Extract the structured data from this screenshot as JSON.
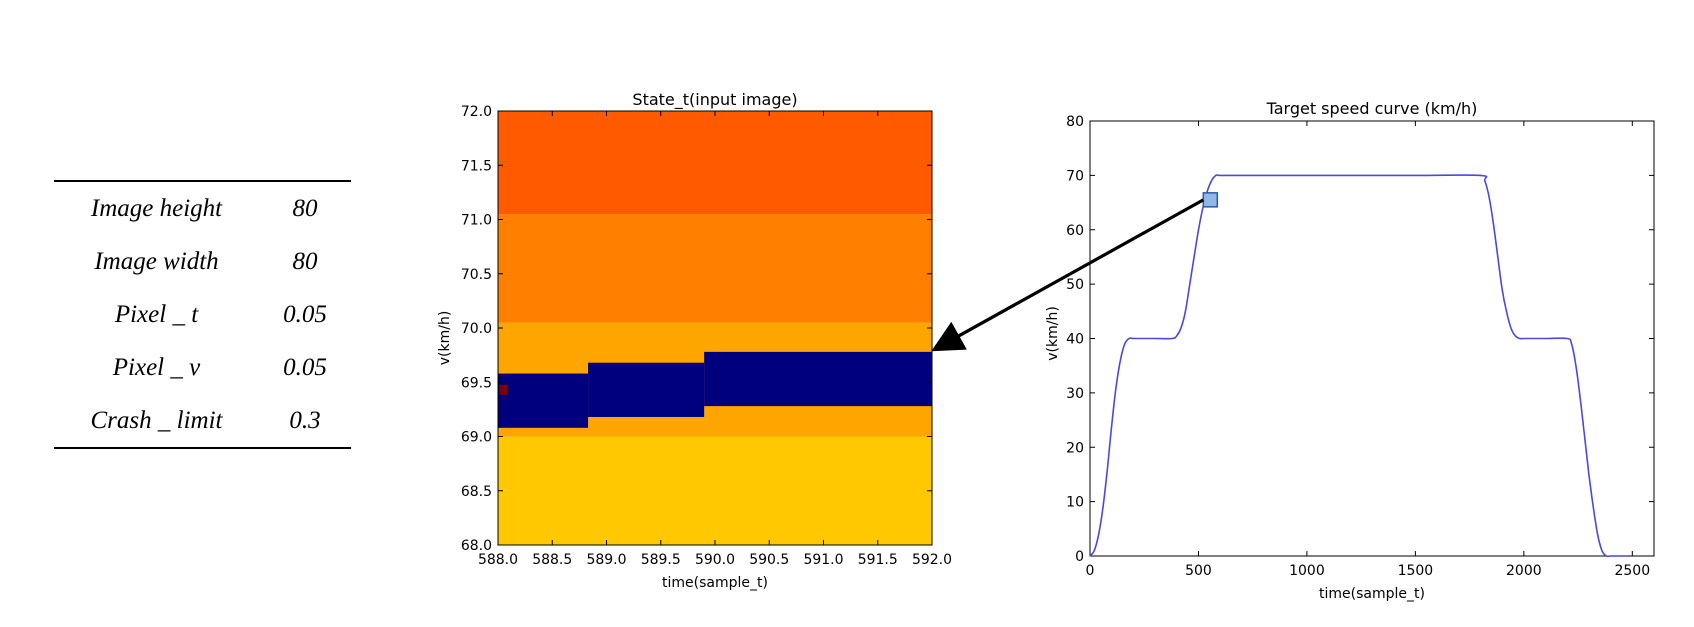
{
  "table": {
    "rows": [
      {
        "label": "Image height",
        "value": "80"
      },
      {
        "label": "Image width",
        "value": "80"
      },
      {
        "label": "Pixel _ t",
        "value": "0.05"
      },
      {
        "label": "Pixel _ v",
        "value": "0.05"
      },
      {
        "label": "Crash _ limit",
        "value": "0.3"
      }
    ]
  },
  "chart_data": [
    {
      "type": "heatmap",
      "title": "State_t(input image)",
      "xlabel": "time(sample_t)",
      "ylabel": "v(km/h)",
      "xlim": [
        588.0,
        592.0
      ],
      "ylim": [
        68.0,
        72.0
      ],
      "xticks": [
        "588.0",
        "588.5",
        "589.0",
        "589.5",
        "590.0",
        "590.5",
        "591.0",
        "591.5",
        "592.0"
      ],
      "yticks": [
        "68.0",
        "68.5",
        "69.0",
        "69.5",
        "70.0",
        "70.5",
        "71.0",
        "71.5",
        "72.0"
      ],
      "bands": [
        {
          "y0": 71.05,
          "y1": 72.0,
          "color": "#ff5a00"
        },
        {
          "y0": 70.05,
          "y1": 71.05,
          "color": "#ff7f00"
        },
        {
          "y0": 69.0,
          "y1": 70.05,
          "color": "#ffa500"
        },
        {
          "y0": 68.0,
          "y1": 69.0,
          "color": "#ffc800"
        }
      ],
      "speed_band": {
        "color": "#00007f",
        "segments": [
          {
            "x0": 588.0,
            "x1": 588.83,
            "y0": 69.08,
            "y1": 69.58
          },
          {
            "x0": 588.83,
            "x1": 589.9,
            "y0": 69.18,
            "y1": 69.68
          },
          {
            "x0": 589.9,
            "x1": 592.0,
            "y0": 69.28,
            "y1": 69.78
          }
        ]
      },
      "marker": {
        "x": 588.05,
        "y": 69.43,
        "color": "#7f0000"
      }
    },
    {
      "type": "line",
      "title": "Target speed curve (km/h)",
      "xlabel": "time(sample_t)",
      "ylabel": "v(km/h)",
      "xlim": [
        0,
        2600
      ],
      "ylim": [
        0,
        80
      ],
      "xticks": [
        0,
        500,
        1000,
        1500,
        2000,
        2500
      ],
      "yticks": [
        0,
        10,
        20,
        30,
        40,
        50,
        60,
        70,
        80
      ],
      "line_color": "#4a4ad8",
      "series": [
        {
          "x": [
            0,
            20,
            40,
            60,
            80,
            100,
            120,
            140,
            160,
            180,
            200,
            220,
            300,
            380,
            400,
            420,
            440,
            460,
            480,
            500,
            520,
            540,
            560,
            580,
            600,
            700,
            1000,
            1500,
            1800,
            1820,
            1840,
            1860,
            1880,
            1900,
            1920,
            1940,
            1960,
            1980,
            2000,
            2100,
            2200,
            2220,
            2240,
            2260,
            2280,
            2300,
            2320,
            2340,
            2360,
            2380,
            2400,
            2450,
            2480
          ],
          "y": [
            0,
            1,
            4,
            9,
            16,
            24,
            31,
            36,
            39,
            40,
            40,
            40,
            40,
            40,
            40.5,
            42,
            45,
            50,
            55,
            60,
            64,
            67,
            69,
            70,
            70,
            70,
            70,
            70,
            70,
            69,
            66,
            61,
            55,
            49,
            45,
            42,
            40.5,
            40,
            40,
            40,
            40,
            39,
            35,
            29,
            22,
            15,
            9,
            4,
            1,
            0,
            0,
            0,
            0
          ]
        }
      ],
      "highlight": {
        "x": 550,
        "y": 65.5
      }
    }
  ]
}
